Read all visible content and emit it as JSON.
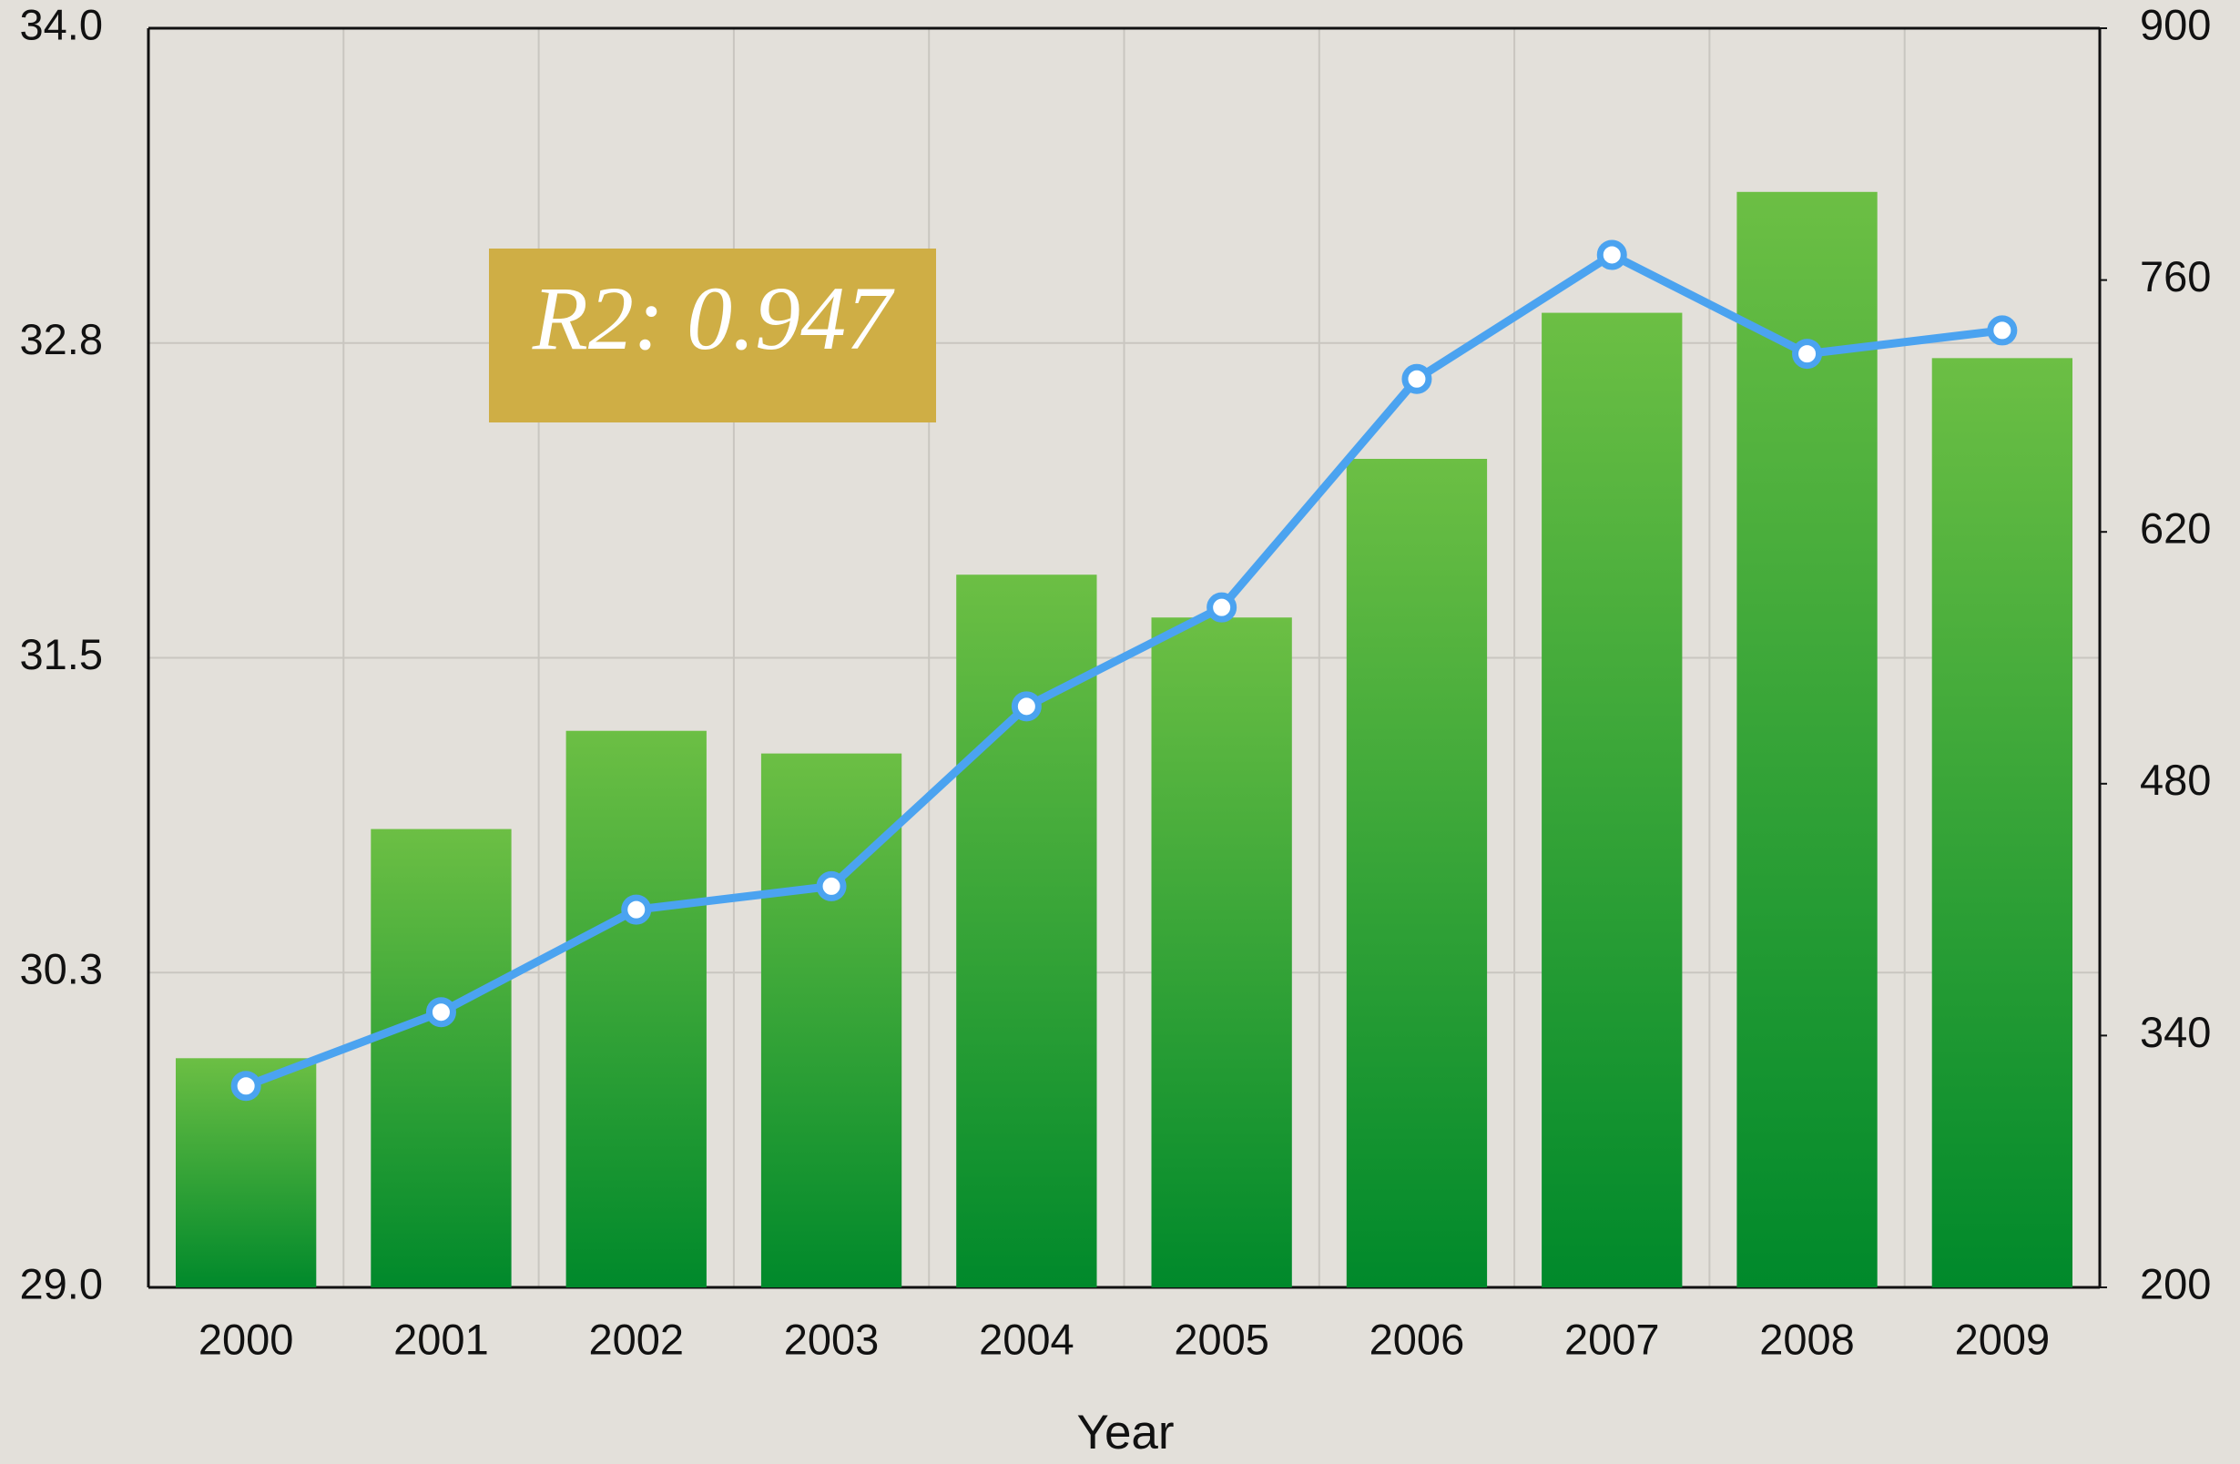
{
  "chart_data": {
    "type": "bar",
    "annotation": "R2: 0.947",
    "xlabel": "Year",
    "categories": [
      "2000",
      "2001",
      "2002",
      "2003",
      "2004",
      "2005",
      "2006",
      "2007",
      "2008",
      "2009"
    ],
    "series": [
      {
        "type": "bar",
        "color": "#00892b",
        "values": [
          29.91,
          30.82,
          31.21,
          31.12,
          31.83,
          31.66,
          32.29,
          32.87,
          33.35,
          32.69
        ]
      },
      {
        "type": "line",
        "axis": "y2",
        "color": "#4ba3f0",
        "values": [
          312,
          353,
          410,
          423,
          523,
          578,
          705,
          774,
          719,
          732
        ]
      }
    ],
    "ylim": [
      29.0,
      34.0
    ],
    "yticks": [
      {
        "value": 29.0,
        "label": "29.0"
      },
      {
        "value": 30.25,
        "label": "30.3"
      },
      31.5,
      {
        "value": 32.75,
        "label": "32.8"
      },
      {
        "value": 34.0,
        "label": "34.0"
      }
    ],
    "y2lim": [
      200,
      900
    ],
    "y2ticks": [
      200,
      340,
      480,
      620,
      760,
      900
    ],
    "grid": true
  }
}
